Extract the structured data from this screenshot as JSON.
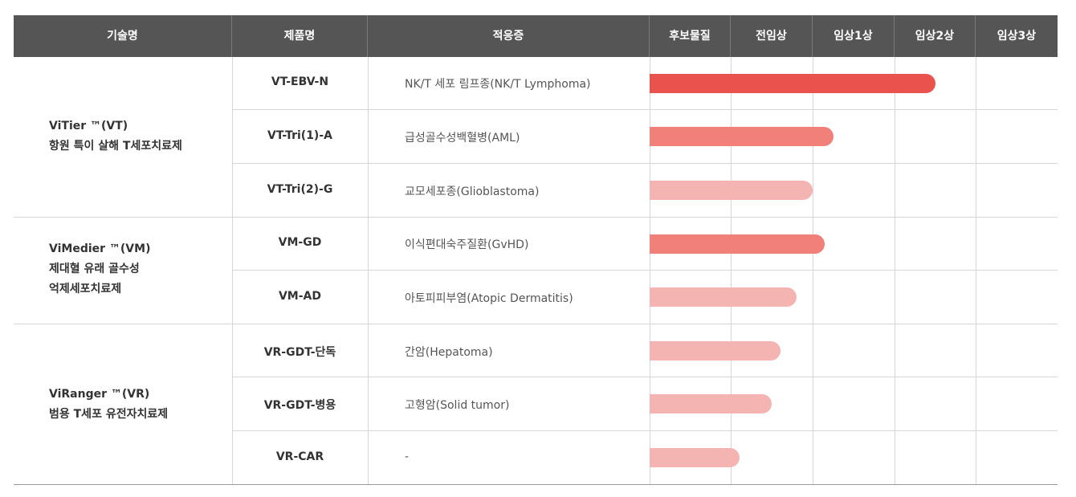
{
  "header": {
    "tech": "기술명",
    "product": "제품명",
    "indication": "적응증",
    "stages": [
      "후보물질",
      "전임상",
      "임상1상",
      "임상2상",
      "임상3상"
    ]
  },
  "groups": [
    {
      "name": "ViTier ™(VT)",
      "desc": [
        "항원 특이 살해 T세포치료제"
      ]
    },
    {
      "name": "ViMedier ™(VM)",
      "desc": [
        "제대혈 유래 골수성",
        "억제세포치료제"
      ]
    },
    {
      "name": "ViRanger ™(VR)",
      "desc": [
        "범용 T세포 유전자치료제"
      ]
    }
  ],
  "rows": [
    {
      "product": "VT-EBV-N",
      "indication": "NK/T 세포 림프종(NK/T Lymphoma)",
      "progress_stages": 3.5,
      "color": "#e9524d"
    },
    {
      "product": "VT-Tri(1)-A",
      "indication": "급성골수성백혈병(AML)",
      "progress_stages": 2.25,
      "color": "#f08079"
    },
    {
      "product": "VT-Tri(2)-G",
      "indication": "교모세포종(Glioblastoma)",
      "progress_stages": 2.0,
      "color": "#f4b4b2"
    },
    {
      "product": "VM-GD",
      "indication": "이식편대숙주질환(GvHD)",
      "progress_stages": 2.15,
      "color": "#f08079"
    },
    {
      "product": "VM-AD",
      "indication": "아토피피부염(Atopic Dermatitis)",
      "progress_stages": 1.8,
      "color": "#f4b4b2"
    },
    {
      "product": "VR-GDT-단독",
      "indication": "간암(Hepatoma)",
      "progress_stages": 1.6,
      "color": "#f4b4b2"
    },
    {
      "product": "VR-GDT-병용",
      "indication": "고형암(Solid tumor)",
      "progress_stages": 1.5,
      "color": "#f4b4b2"
    },
    {
      "product": "VR-CAR",
      "indication": "-",
      "progress_stages": 1.1,
      "color": "#f4b4b2"
    }
  ]
}
